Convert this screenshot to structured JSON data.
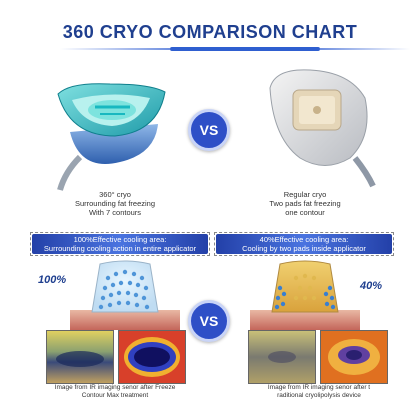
{
  "header": {
    "title": "360 CRYO COMPARISON CHART"
  },
  "badges": {
    "top_vs": "VS",
    "bottom_vs": "VS"
  },
  "left_device": {
    "caption_line1": "360° cryo",
    "caption_line2": "Surrounding fat freezing",
    "caption_line3": "With 7 contours"
  },
  "right_device": {
    "caption_line1": "Regular cryo",
    "caption_line2": "Two pads fat freezing",
    "caption_line3": "one contour"
  },
  "left_banner": {
    "line1": "100%Effective cooling area:",
    "line2": "Surrounding cooling action in entire applicator"
  },
  "right_banner": {
    "line1": "40%Effective cooling area:",
    "line2": "Cooling by two pads inside applicator"
  },
  "left_percent": "100%",
  "right_percent": "40%",
  "left_thermal_caption": {
    "line1": "Image from IR imaging senor after Freeze",
    "line2": "Contour Max treatment"
  },
  "right_thermal_caption": {
    "line1": "Image from IR imaging senor after t",
    "line2": "raditional cryolipolysis device"
  }
}
